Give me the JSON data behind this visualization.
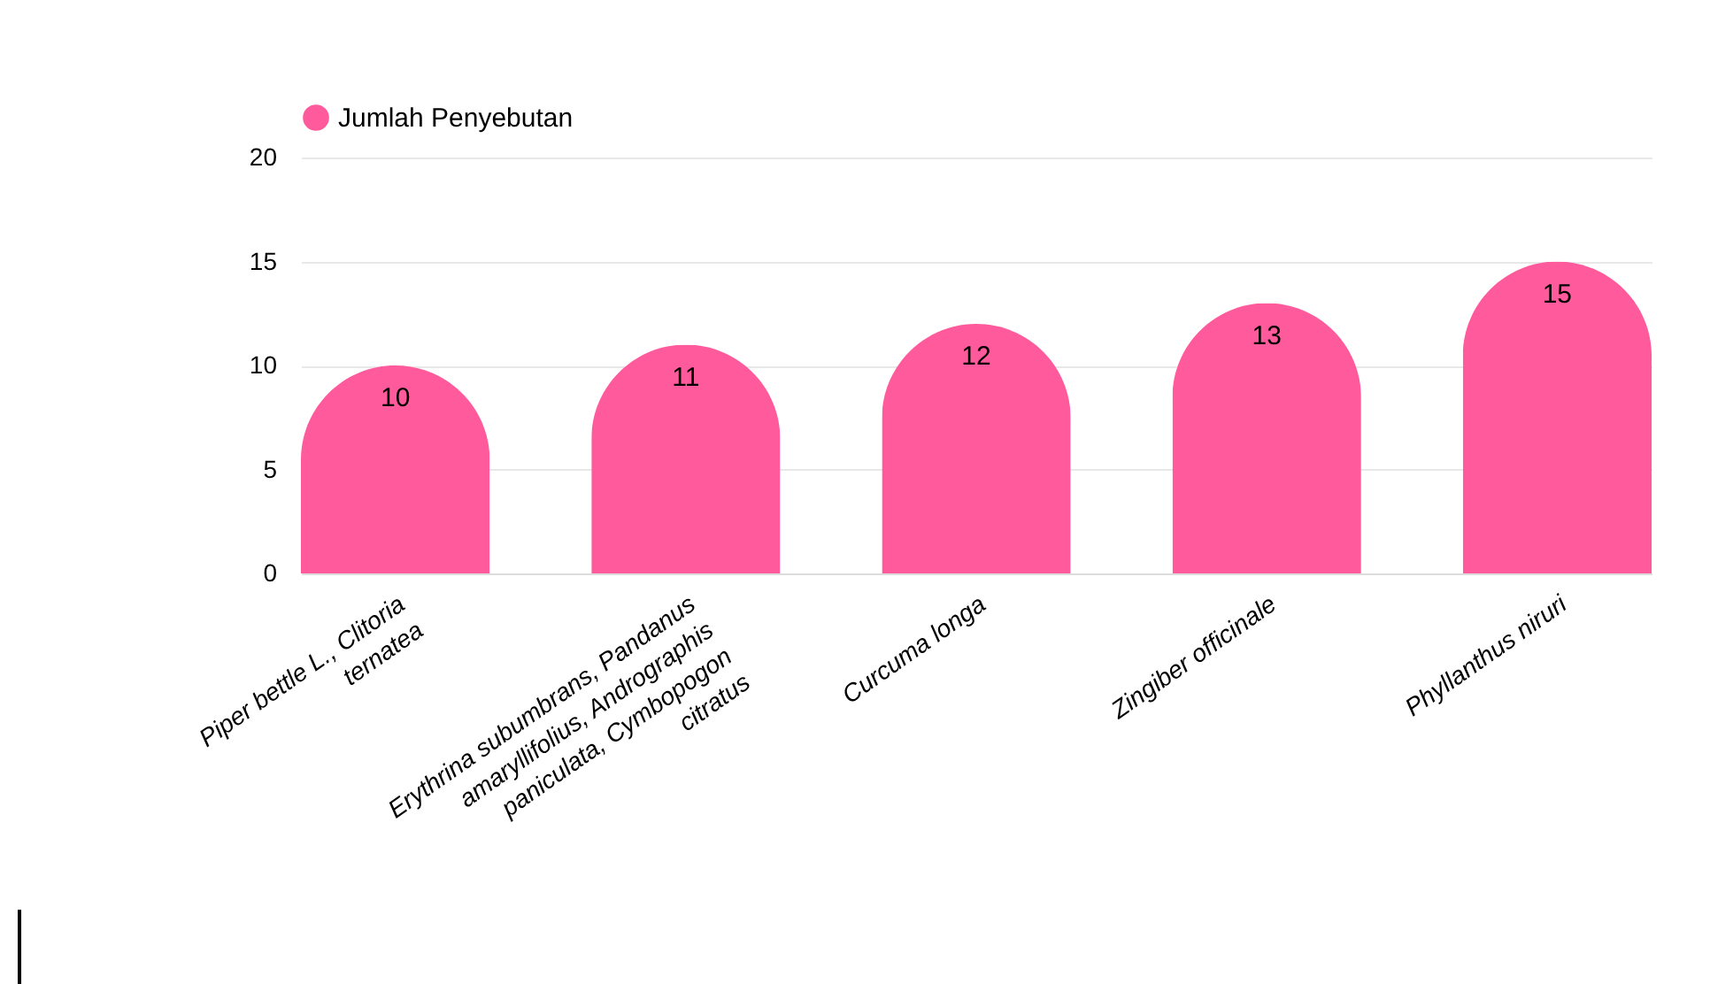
{
  "chart_data": {
    "type": "bar",
    "categories": [
      "Piper bettle L., Clitoria ternatea",
      "Erythrina subumbrans, Pandanus amaryllifolius, Andrographis paniculata, Cymbopogon citratus",
      "Curcuma longa",
      "Zingiber officinale",
      "Phyllanthus niruri"
    ],
    "series": [
      {
        "name": "Jumlah Penyebutan",
        "color": "#ff5a9b",
        "values": [
          10,
          11,
          12,
          13,
          15
        ]
      }
    ],
    "ylim": [
      0,
      20
    ],
    "yticks": [
      0,
      5,
      10,
      15,
      20
    ],
    "grid": "y",
    "legend": "top",
    "data_labels": true
  }
}
